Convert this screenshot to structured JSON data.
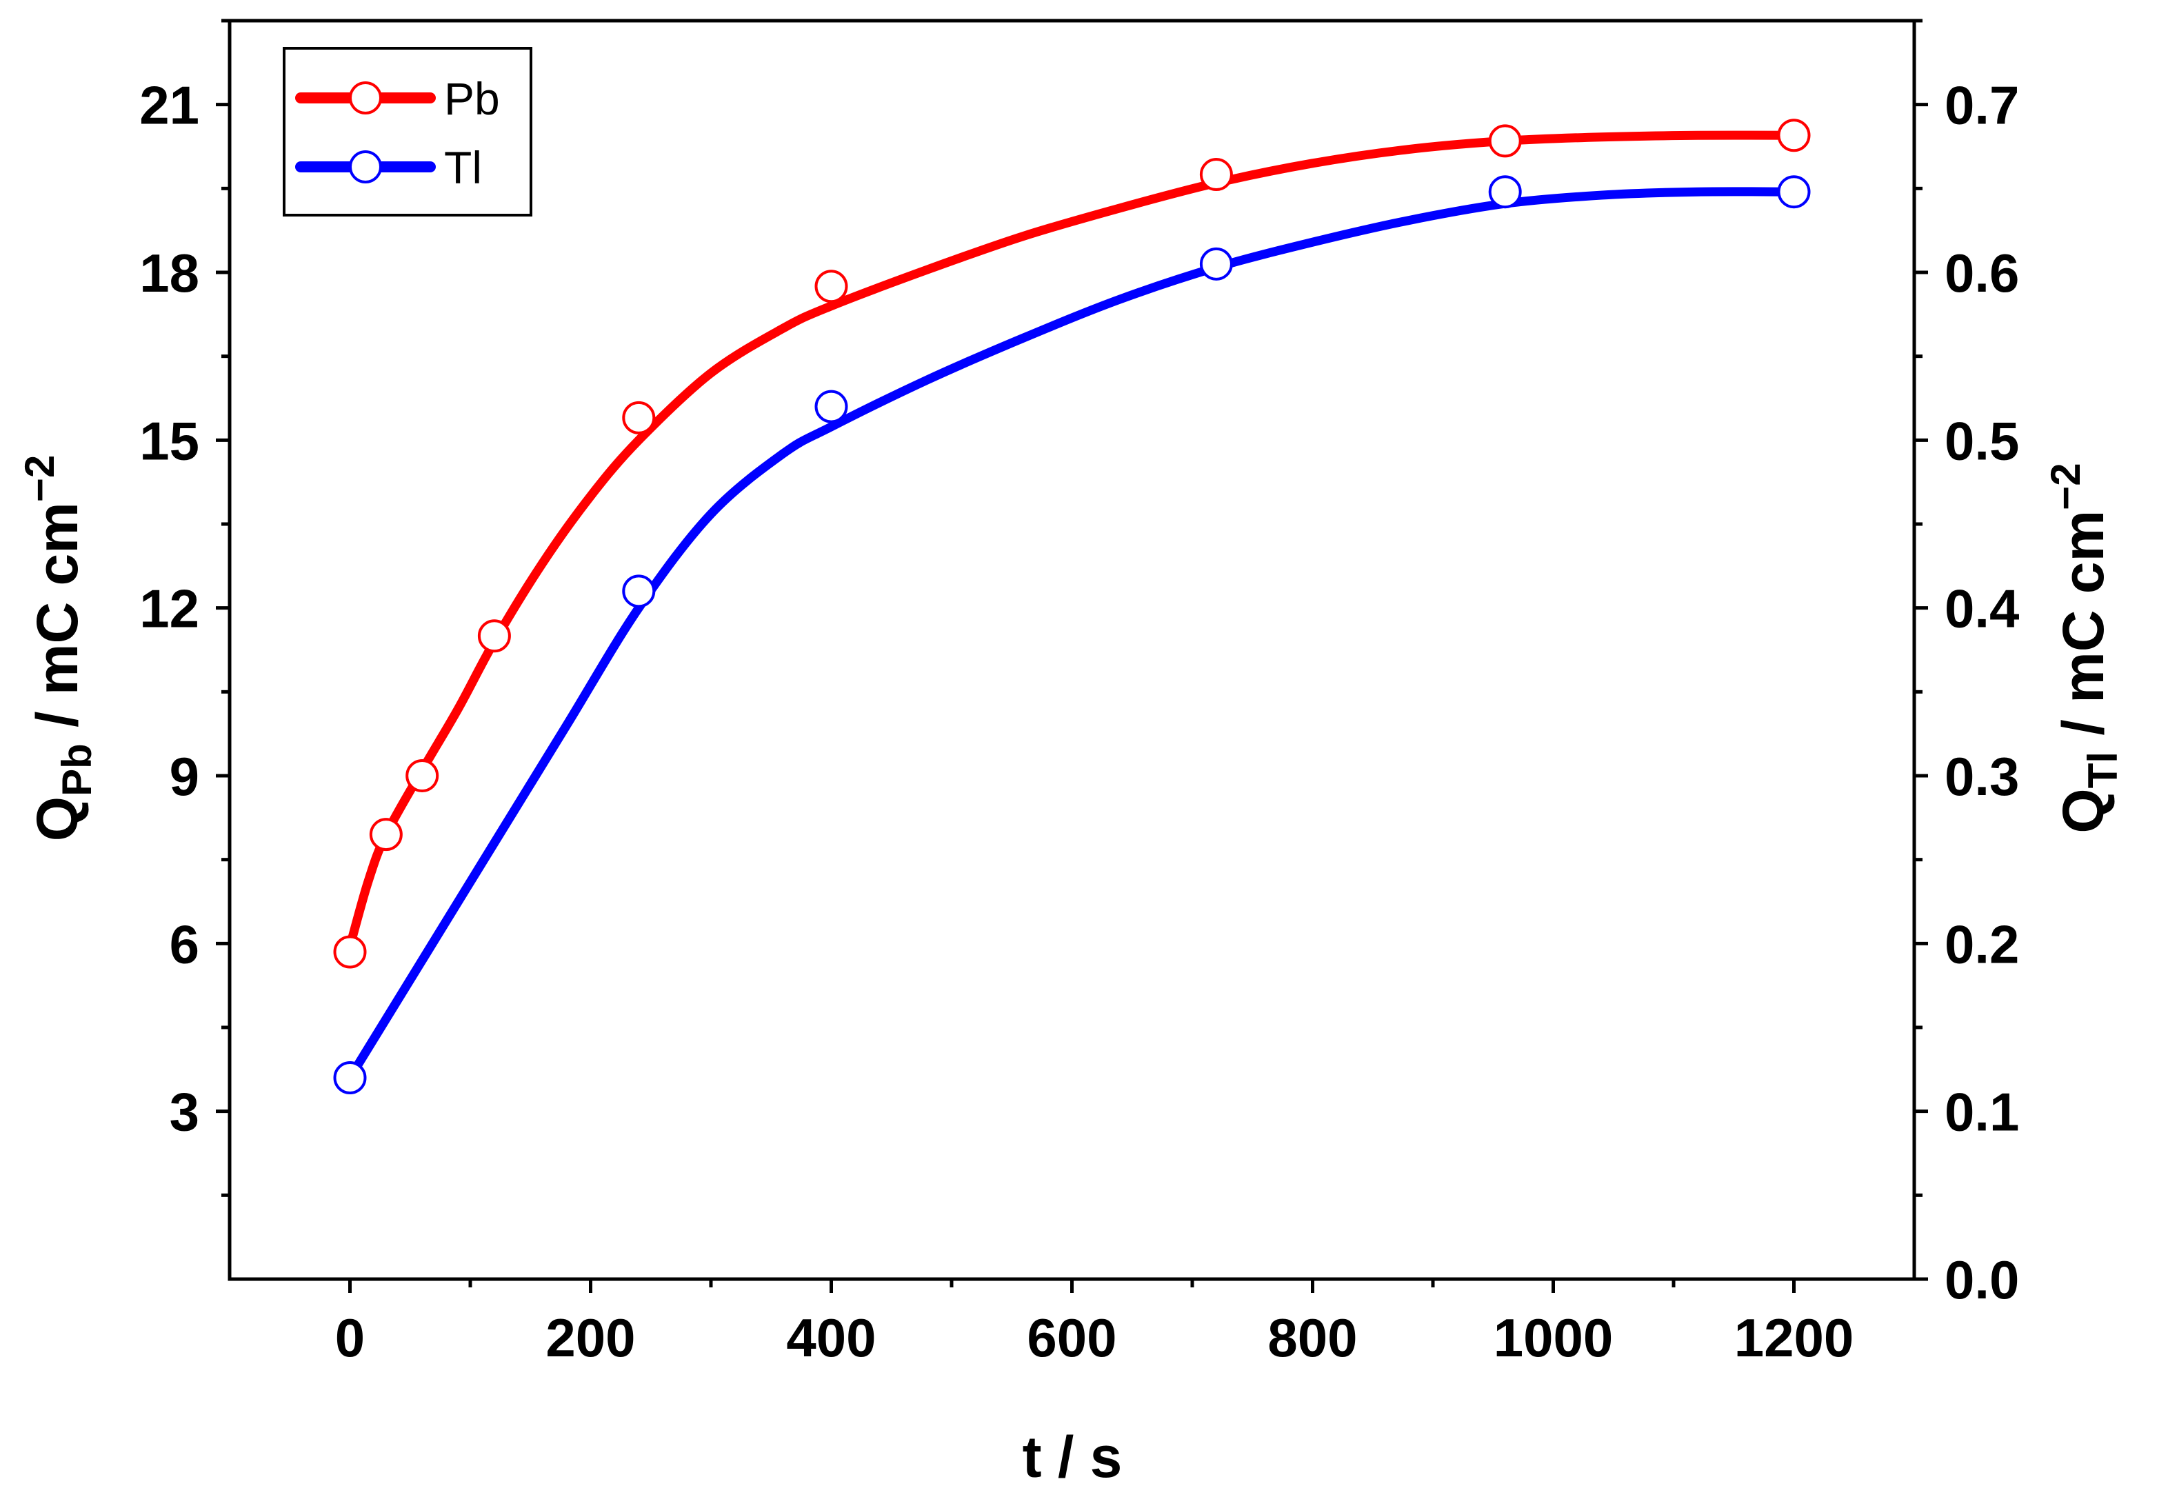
{
  "chart_data": {
    "type": "line",
    "title": "",
    "xlabel": "t / s",
    "ylabel_left": {
      "main": "Q",
      "sub": "Pb",
      "rest": " / mC cm",
      "sup": "−2"
    },
    "ylabel_right": {
      "main": "Q",
      "sub": "Tl",
      "rest": " / mC cm",
      "sup": "−2"
    },
    "xlim": [
      -100,
      1300
    ],
    "ylim_left": [
      0,
      22.5
    ],
    "ylim_right": [
      0,
      0.75
    ],
    "x_ticks": [
      0,
      200,
      400,
      600,
      800,
      1000,
      1200
    ],
    "x_tick_labels": [
      "0",
      "200",
      "400",
      "600",
      "800",
      "1000",
      "1200"
    ],
    "y_left_ticks": [
      3,
      6,
      9,
      12,
      15,
      18,
      21
    ],
    "y_left_tick_labels": [
      "3",
      "6",
      "9",
      "12",
      "15",
      "18",
      "21"
    ],
    "y_right_ticks": [
      0.0,
      0.1,
      0.2,
      0.3,
      0.4,
      0.5,
      0.6,
      0.7
    ],
    "y_right_tick_labels": [
      "0.0",
      "0.1",
      "0.2",
      "0.3",
      "0.4",
      "0.5",
      "0.6",
      "0.7"
    ],
    "legend_position": "top-left",
    "series": [
      {
        "name": "Pb",
        "axis": "left",
        "color": "#ff0000",
        "points": {
          "x": [
            0,
            30,
            60,
            120,
            240,
            400,
            720,
            960,
            1200
          ],
          "y": [
            5.85,
            7.95,
            9.0,
            11.5,
            15.4,
            17.75,
            19.75,
            20.35,
            20.45
          ]
        },
        "fit": {
          "x": [
            0,
            15,
            30,
            60,
            90,
            120,
            160,
            200,
            240,
            300,
            360,
            400,
            480,
            560,
            640,
            720,
            800,
            880,
            960,
            1040,
            1120,
            1200
          ],
          "y": [
            5.95,
            7.1,
            7.95,
            9.1,
            10.2,
            11.4,
            12.8,
            14.0,
            15.0,
            16.2,
            17.0,
            17.4,
            18.05,
            18.65,
            19.15,
            19.6,
            19.95,
            20.2,
            20.35,
            20.42,
            20.45,
            20.45
          ]
        }
      },
      {
        "name": "Tl",
        "axis": "right",
        "color": "#0000ff",
        "points": {
          "x": [
            0,
            240,
            400,
            720,
            960,
            1200
          ],
          "y": [
            0.12,
            0.41,
            0.52,
            0.605,
            0.648,
            0.648
          ]
        },
        "fit": {
          "x": [
            0,
            60,
            120,
            180,
            240,
            300,
            360,
            400,
            480,
            560,
            640,
            720,
            800,
            880,
            960,
            1040,
            1120,
            1200
          ],
          "y": [
            0.12,
            0.19,
            0.26,
            0.33,
            0.4,
            0.456,
            0.492,
            0.508,
            0.536,
            0.561,
            0.584,
            0.603,
            0.618,
            0.631,
            0.641,
            0.646,
            0.648,
            0.648
          ]
        }
      }
    ]
  }
}
